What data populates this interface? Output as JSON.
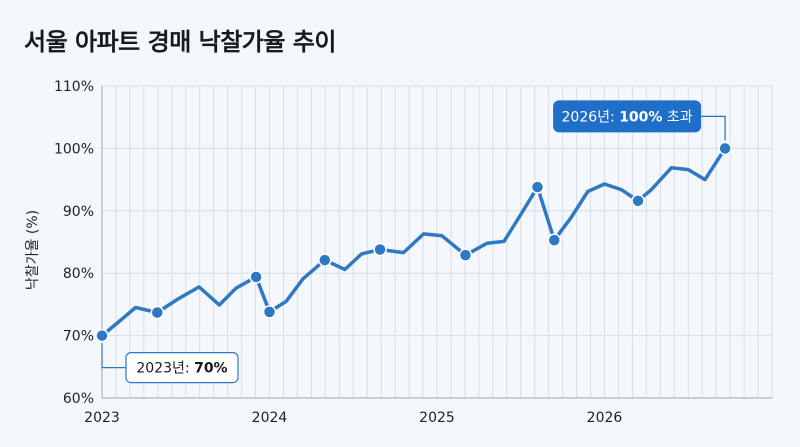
{
  "title": "서울 아파트 경매 낙찰가율 추이",
  "colors": {
    "line": "#2f78c4",
    "point": "#2f78c4",
    "grid": "#d7dee6",
    "axis": "#9aa3ad",
    "callout_fill": "#1f6fc9",
    "callout_text": "#ffffff",
    "background": "#f4f8fc"
  },
  "chart_data": {
    "type": "line",
    "title": "서울 아파트 경매 낙찰가율 추이",
    "xlabel": "",
    "ylabel": "낙찰가율 (%)",
    "ylim": [
      60,
      110
    ],
    "y_ticks": [
      "60%",
      "70%",
      "80%",
      "90%",
      "100%",
      "110%"
    ],
    "y_tick_values": [
      60,
      70,
      80,
      90,
      100,
      110
    ],
    "x_ticks": [
      "2023",
      "2024",
      "2025",
      "2026"
    ],
    "x_tick_values": [
      2023,
      2024,
      2025,
      2026
    ],
    "xlim": [
      2023,
      2027
    ],
    "grid": true,
    "series": [
      {
        "x": [
          2023.0,
          2023.1,
          2023.2,
          2023.33,
          2023.45,
          2023.58,
          2023.7,
          2023.8,
          2023.92,
          2024.0,
          2024.1,
          2024.2,
          2024.33,
          2024.45,
          2024.55,
          2024.66,
          2024.8,
          2024.92,
          2025.03,
          2025.17,
          2025.3,
          2025.4,
          2025.5,
          2025.6,
          2025.7,
          2025.8,
          2025.9,
          2026.0,
          2026.1,
          2026.2,
          2026.28,
          2026.4,
          2026.5,
          2026.6,
          2026.72
        ],
        "y": [
          70,
          72.2,
          74.5,
          73.7,
          75.8,
          77.8,
          74.9,
          77.6,
          79.4,
          73.8,
          75.5,
          79.1,
          82.1,
          80.6,
          83.1,
          83.8,
          83.3,
          86.3,
          86.0,
          82.9,
          84.8,
          85.1,
          89.4,
          93.8,
          85.3,
          88.9,
          93.1,
          94.3,
          93.4,
          91.6,
          93.4,
          96.9,
          96.6,
          95.0,
          100
        ]
      }
    ],
    "highlight_points": [
      {
        "x": 2023.0,
        "y": 70
      },
      {
        "x": 2023.33,
        "y": 73.7
      },
      {
        "x": 2023.92,
        "y": 79.4
      },
      {
        "x": 2024.0,
        "y": 73.8
      },
      {
        "x": 2024.33,
        "y": 82.1
      },
      {
        "x": 2024.66,
        "y": 83.8
      },
      {
        "x": 2025.17,
        "y": 82.9
      },
      {
        "x": 2025.6,
        "y": 93.8
      },
      {
        "x": 2025.7,
        "y": 85.3
      },
      {
        "x": 2026.2,
        "y": 91.6
      },
      {
        "x": 2026.72,
        "y": 100
      }
    ],
    "annotations": [
      {
        "prefix": "2023년: ",
        "value": "70%",
        "suffix": "",
        "x": 2023.0,
        "y": 70
      },
      {
        "prefix": "2026년: ",
        "value": "100%",
        "suffix": " 초과",
        "x": 2026.72,
        "y": 100
      }
    ]
  }
}
